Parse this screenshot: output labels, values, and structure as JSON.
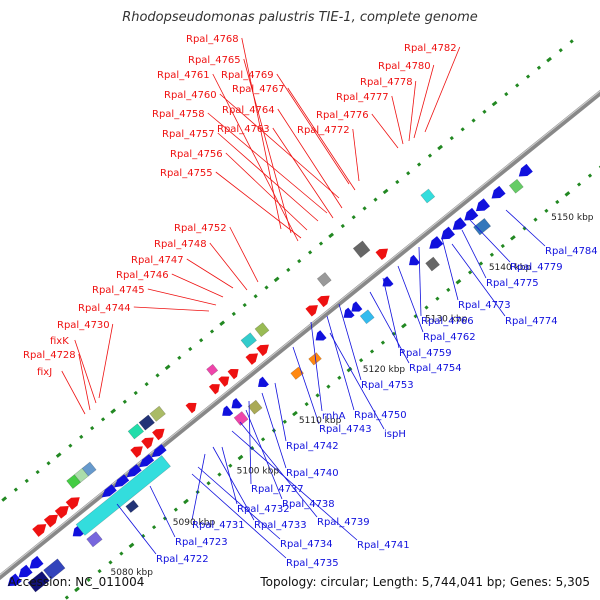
{
  "header": {
    "title": "Rhodopseudomonas palustris TIE-1, complete genome"
  },
  "footer": {
    "accession": "Accession: NC_011004",
    "summary": "Topology: circular; Length: 5,744,041 bp; Genes: 5,305"
  },
  "colors": {
    "forward": "#ee1111",
    "reverse": "#1111dd",
    "backbone": "#888888",
    "scale": "#228822"
  },
  "scale_labels": [
    "5080 kbp",
    "5090 kbp",
    "5100 kbp",
    "5110 kbp",
    "5120 kbp",
    "5130 kbp",
    "5140 kbp",
    "5150 kbp"
  ],
  "top_genes": [
    "Rpal_4768",
    "Rpal_4765",
    "Rpal_4761",
    "Rpal_4769",
    "Rpal_4767",
    "Rpal_4760",
    "Rpal_4764",
    "Rpal_4758",
    "Rpal_4763",
    "Rpal_4757",
    "Rpal_4756",
    "Rpal_4755",
    "Rpal_4772",
    "Rpal_4776",
    "Rpal_4777",
    "Rpal_4778",
    "Rpal_4780",
    "Rpal_4782",
    "Rpal_4752",
    "Rpal_4748",
    "Rpal_4747",
    "Rpal_4746",
    "Rpal_4745",
    "Rpal_4744",
    "Rpal_4730",
    "fixK",
    "Rpal_4728",
    "fixJ"
  ],
  "bottom_genes": [
    "Rpal_4784",
    "Rpal_4779",
    "Rpal_4775",
    "Rpal_4773",
    "Rpal_4774",
    "Rpal_4766",
    "Rpal_4762",
    "Rpal_4759",
    "Rpal_4754",
    "Rpal_4753",
    "Rpal_4750",
    "rnhA",
    "ispH",
    "Rpal_4743",
    "Rpal_4742",
    "Rpal_4740",
    "Rpal_4737",
    "Rpal_4738",
    "Rpal_4739",
    "Rpal_4741",
    "Rpal_4732",
    "Rpal_4731",
    "Rpal_4733",
    "Rpal_4734",
    "Rpal_4735",
    "Rpal_4723",
    "Rpal_4722"
  ]
}
